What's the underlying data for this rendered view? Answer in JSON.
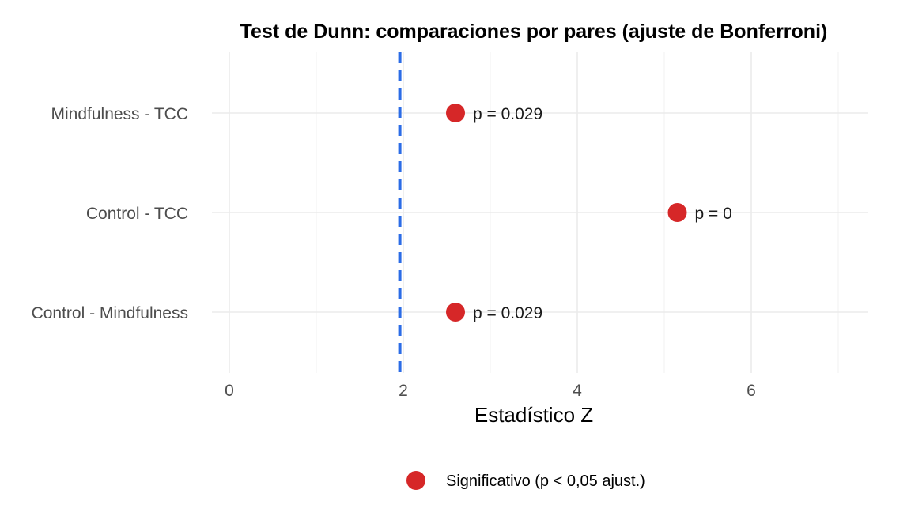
{
  "chart_data": {
    "type": "scatter",
    "title": "Test de Dunn: comparaciones por pares (ajuste de Bonferroni)",
    "xlabel": "Estadístico Z",
    "ylabel": "",
    "xlim": [
      -0.2,
      7.35
    ],
    "xticks": [
      0,
      2,
      4,
      6
    ],
    "categories": [
      "Control - Mindfulness",
      "Control - TCC",
      "Mindfulness - TCC"
    ],
    "series": [
      {
        "name": "Significativo (p < 0,05 ajust.)",
        "color": "#d62728",
        "points": [
          {
            "category": "Mindfulness - TCC",
            "x": 2.6,
            "label": "p = 0.029"
          },
          {
            "category": "Control - TCC",
            "x": 5.15,
            "label": "p = 0"
          },
          {
            "category": "Control - Mindfulness",
            "x": 2.6,
            "label": "p = 0.029"
          }
        ]
      }
    ],
    "reference_line": {
      "x": 1.96,
      "color": "#2b6ce6",
      "style": "dashed"
    },
    "grid": true,
    "legend_position": "bottom"
  }
}
